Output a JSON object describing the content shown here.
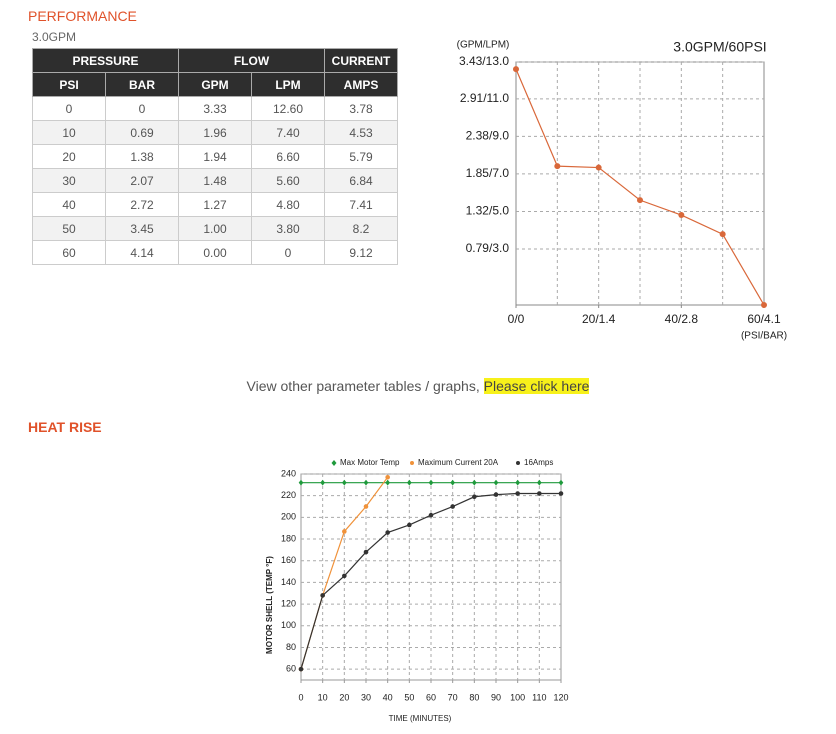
{
  "section_title": "PERFORMANCE",
  "subtitle": "3.0GPM",
  "table": {
    "group_headers": [
      "PRESSURE",
      "FLOW",
      "CURRENT"
    ],
    "columns": [
      "PSI",
      "BAR",
      "GPM",
      "LPM",
      "AMPS"
    ],
    "rows": [
      [
        "0",
        "0",
        "3.33",
        "12.60",
        "3.78"
      ],
      [
        "10",
        "0.69",
        "1.96",
        "7.40",
        "4.53"
      ],
      [
        "20",
        "1.38",
        "1.94",
        "6.60",
        "5.79"
      ],
      [
        "30",
        "2.07",
        "1.48",
        "5.60",
        "6.84"
      ],
      [
        "40",
        "2.72",
        "1.27",
        "4.80",
        "7.41"
      ],
      [
        "50",
        "3.45",
        "1.00",
        "3.80",
        "8.2"
      ],
      [
        "60",
        "4.14",
        "0.00",
        "0",
        "9.12"
      ]
    ]
  },
  "link_text": "View other parameter tables / graphs,",
  "link": "Please click here",
  "heat_title": "HEAT RISE",
  "chart_data": [
    {
      "type": "line",
      "title": "3.0GPM/60PSI",
      "y_label": "(GPM/LPM)",
      "x_label": "(PSI/BAR)",
      "x": [
        0,
        10,
        20,
        30,
        40,
        50,
        60
      ],
      "series": [
        {
          "name": null,
          "color": "#d9683a",
          "marker": "circle",
          "values": [
            3.33,
            1.96,
            1.94,
            1.48,
            1.27,
            1.0,
            0.0
          ]
        }
      ],
      "xlim": [
        0,
        60
      ],
      "xticks": [
        {
          "value": 0,
          "label": "0/0"
        },
        {
          "value": 20,
          "label": "20/1.4"
        },
        {
          "value": 40,
          "label": "40/2.8"
        },
        {
          "value": 60,
          "label": "60/4.1"
        }
      ],
      "x_gridlines": [
        10,
        20,
        30,
        40,
        50
      ],
      "ylim": [
        0,
        3.43
      ],
      "yticks": [
        {
          "value": 0.79,
          "label": "0.79/3.0"
        },
        {
          "value": 1.32,
          "label": "1.32/5.0"
        },
        {
          "value": 1.85,
          "label": "1.85/7.0"
        },
        {
          "value": 2.38,
          "label": "2.38/9.0"
        },
        {
          "value": 2.91,
          "label": "2.91/11.0"
        },
        {
          "value": 3.43,
          "label": "3.43/13.0"
        }
      ],
      "grid": true,
      "legend": false
    },
    {
      "type": "line",
      "y_label": "MOTOR SHELL (TEMP °F)",
      "x_label": "TIME (MINUTES)",
      "x": [
        0,
        10,
        20,
        30,
        40,
        50,
        60,
        70,
        80,
        90,
        100,
        110,
        120
      ],
      "series": [
        {
          "name": "Max Motor Temp",
          "color": "#1f9a3c",
          "marker": "diamond",
          "values": [
            232,
            232,
            232,
            232,
            232,
            232,
            232,
            232,
            232,
            232,
            232,
            232,
            232
          ]
        },
        {
          "name": "Maximum Current 20A",
          "color": "#f0923a",
          "marker": "circle",
          "values": [
            60,
            128,
            187,
            210,
            237,
            null,
            null,
            null,
            null,
            null,
            null,
            null,
            null
          ]
        },
        {
          "name": "16Amps",
          "color": "#333333",
          "marker": "circle",
          "values": [
            60,
            128,
            146,
            168,
            186,
            193,
            202,
            210,
            219,
            221,
            222,
            222,
            222
          ]
        }
      ],
      "xlim": [
        0,
        120
      ],
      "xticks": [
        0,
        10,
        20,
        30,
        40,
        50,
        60,
        70,
        80,
        90,
        100,
        110,
        120
      ],
      "x_gridlines": [
        10,
        20,
        30,
        40,
        50,
        60,
        70,
        80,
        90,
        100,
        110
      ],
      "ylim": [
        50,
        240
      ],
      "yticks": [
        60,
        80,
        100,
        120,
        140,
        160,
        180,
        200,
        220,
        240
      ],
      "grid": true,
      "legend": "top"
    }
  ]
}
